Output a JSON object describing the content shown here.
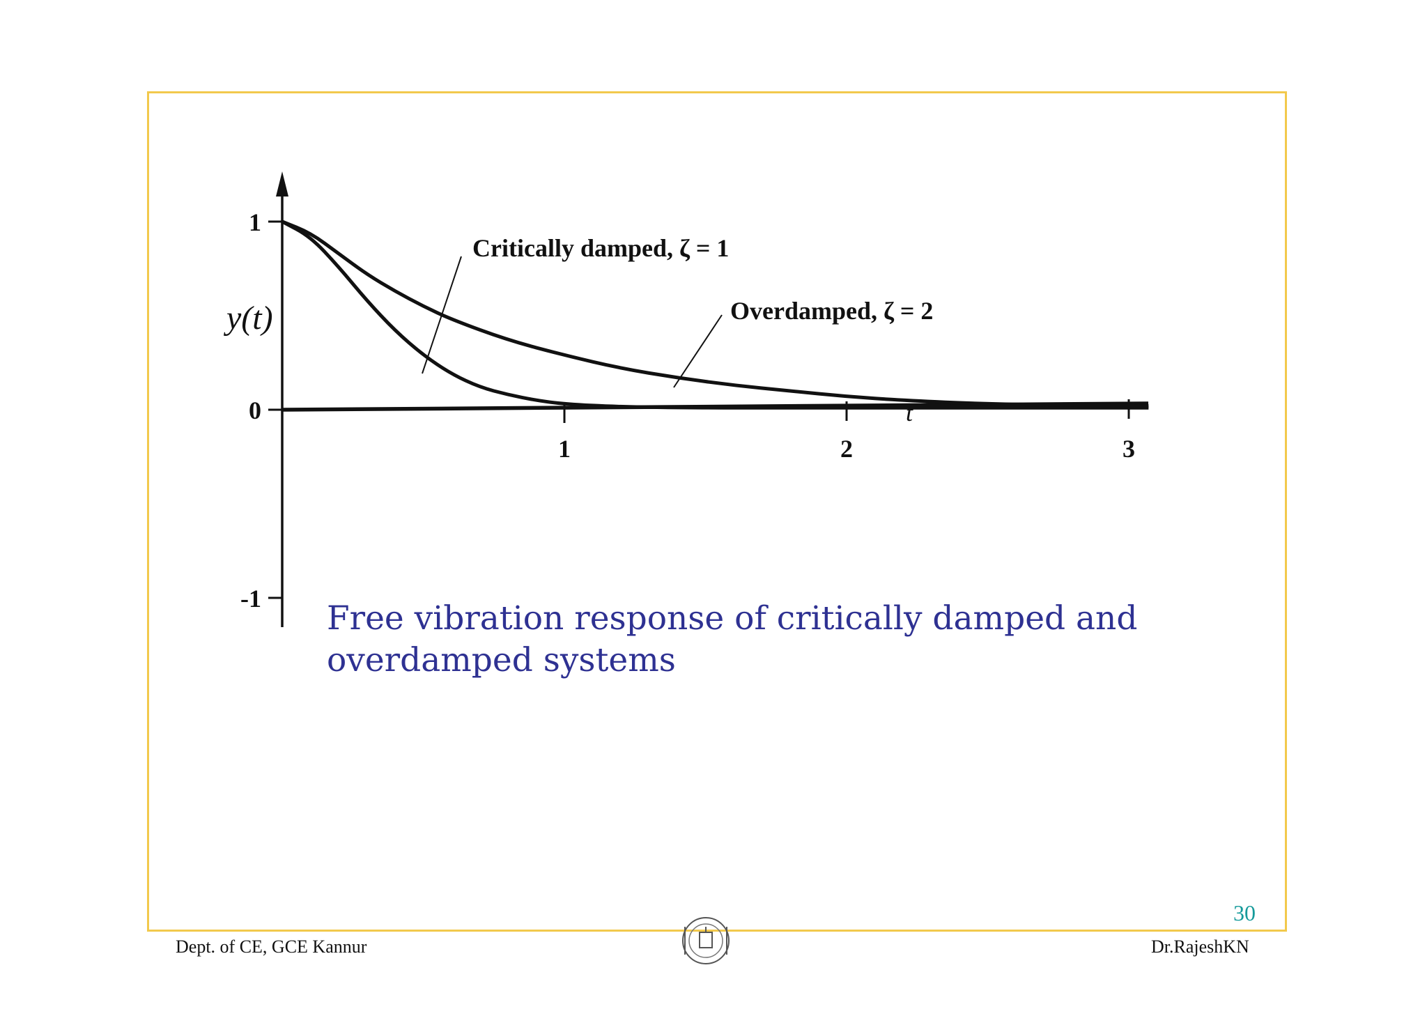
{
  "slide": {
    "caption": "Free vibration response of critically damped and overdamped systems",
    "page_number": "30",
    "footer_left": "Dept. of CE, GCE Kannur",
    "footer_right": "Dr.RajeshKN",
    "frame_color": "#f2c94c",
    "caption_color": "#2e3192",
    "page_number_color": "#159a9a",
    "logo_icon": "college-seal-icon"
  },
  "chart_data": {
    "type": "line",
    "title": "",
    "xlabel": "t",
    "ylabel": "y(t)",
    "xlim": [
      0,
      3.1
    ],
    "ylim": [
      -1.15,
      1.25
    ],
    "x_ticks": [
      1,
      2,
      3
    ],
    "y_ticks": [
      1,
      0,
      -1
    ],
    "x_tick_labels": [
      "1",
      "2",
      "3"
    ],
    "y_tick_labels": [
      "1",
      "0",
      "-1"
    ],
    "grid": false,
    "series": [
      {
        "name": "Critically damped, ζ = 1",
        "x": [
          0,
          0.1,
          0.2,
          0.3,
          0.4,
          0.5,
          0.6,
          0.7,
          0.8,
          0.9,
          1.0,
          1.2,
          1.5,
          2.0,
          2.5,
          3.0,
          3.07
        ],
        "y": [
          1.0,
          0.92,
          0.76,
          0.58,
          0.42,
          0.29,
          0.19,
          0.12,
          0.08,
          0.05,
          0.03,
          0.015,
          0.01,
          0.01,
          0.01,
          0.01,
          0.01
        ]
      },
      {
        "name": "Overdamped, ζ = 2",
        "x": [
          0,
          0.1,
          0.2,
          0.3,
          0.4,
          0.5,
          0.6,
          0.8,
          1.0,
          1.2,
          1.4,
          1.6,
          1.8,
          2.0,
          2.2,
          2.5,
          3.0,
          3.07
        ],
        "y": [
          1.0,
          0.94,
          0.83,
          0.72,
          0.63,
          0.55,
          0.48,
          0.37,
          0.29,
          0.22,
          0.17,
          0.13,
          0.1,
          0.07,
          0.05,
          0.03,
          0.02,
          0.02
        ]
      }
    ]
  }
}
